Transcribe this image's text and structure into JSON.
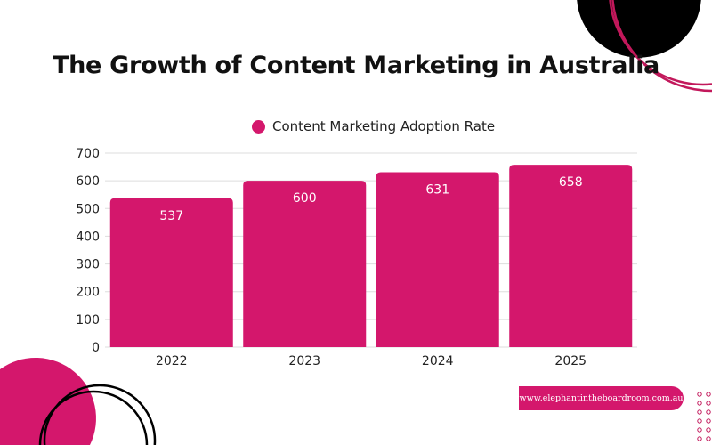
{
  "chart_data": {
    "type": "bar",
    "title": "The Growth of Content Marketing in Australia",
    "categories": [
      "2022",
      "2023",
      "2024",
      "2025"
    ],
    "series": [
      {
        "name": "Content Marketing Adoption Rate",
        "values": [
          537,
          600,
          631,
          658
        ]
      }
    ],
    "yticks": [
      "0",
      "100",
      "200",
      "300",
      "400",
      "500",
      "600",
      "700"
    ],
    "ylim": [
      0,
      700
    ],
    "grid": true,
    "legend": "top",
    "data_labels": true,
    "bar_color": "#d4176c"
  },
  "footer": {
    "url": "www.elephantintheboardroom.com.au"
  },
  "colors": {
    "accent": "#d4176c",
    "dark": "#000000"
  }
}
